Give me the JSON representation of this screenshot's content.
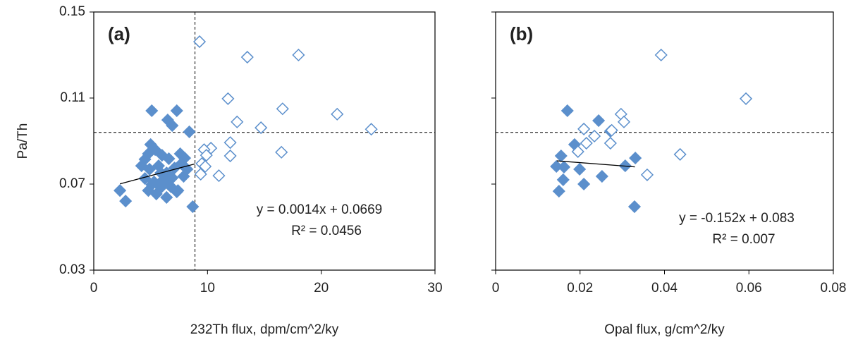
{
  "chart_data": [
    {
      "type": "scatter",
      "panel_label": "(a)",
      "ylabel": "Pa/Th",
      "xlabel": "232Th flux, dpm/cm^2/ky",
      "xlim": [
        0,
        30
      ],
      "xticks": [
        0,
        10,
        20,
        30
      ],
      "ylim": [
        0.03,
        0.15
      ],
      "yticks": [
        0.03,
        0.07,
        0.11,
        0.15
      ],
      "ytick_labels": true,
      "hline": 0.094,
      "vline": 8.9,
      "trendline": {
        "x": [
          2.3,
          8.9
        ],
        "y": [
          0.0701,
          0.0794
        ]
      },
      "equation": "y = 0.0014x + 0.0669",
      "r2_label": "R² = 0.0456",
      "series": [
        {
          "color": "#5b8fcc",
          "filled": true,
          "x": [
            5.1,
            7.3,
            6.5,
            6.9,
            8.4,
            5.0,
            2.3,
            2.8,
            8.7,
            4.8,
            5.4,
            6.0,
            6.6,
            7.6,
            8.0,
            4.2,
            4.9,
            5.7,
            6.4,
            7.1,
            7.7,
            4.5,
            5.3,
            6.1,
            6.9,
            7.9,
            4.8,
            5.5,
            6.4,
            7.3,
            5.1,
            5.9,
            6.8,
            7.4,
            8.2,
            4.5,
            6.6,
            5.9
          ],
          "values": [
            0.1041,
            0.1041,
            0.0998,
            0.0972,
            0.0943,
            0.0884,
            0.067,
            0.0621,
            0.0595,
            0.0841,
            0.086,
            0.0834,
            0.0818,
            0.0841,
            0.0821,
            0.0785,
            0.0769,
            0.0785,
            0.0752,
            0.0775,
            0.0795,
            0.0726,
            0.071,
            0.072,
            0.0729,
            0.0736,
            0.067,
            0.0654,
            0.0638,
            0.0664,
            0.0697,
            0.0684,
            0.0687,
            0.067,
            0.0769,
            0.0815,
            0.0697,
            0.0752
          ]
        },
        {
          "color": "#5b8fcc",
          "filled": false,
          "x": [
            9.3,
            13.5,
            18.0,
            11.8,
            16.6,
            21.4,
            12.6,
            14.7,
            24.4,
            12.0,
            10.3,
            12.0,
            16.5,
            9.7,
            9.9,
            9.5,
            9.8,
            9.4,
            11.0
          ],
          "values": [
            0.1362,
            0.129,
            0.13,
            0.1097,
            0.105,
            0.1025,
            0.0989,
            0.0962,
            0.0955,
            0.0893,
            0.0867,
            0.0831,
            0.0848,
            0.086,
            0.0834,
            0.0795,
            0.0782,
            0.0746,
            0.0739
          ]
        }
      ]
    },
    {
      "type": "scatter",
      "panel_label": "(b)",
      "xlabel": "Opal flux, g/cm^2/ky",
      "xlim": [
        0,
        0.08
      ],
      "xticks": [
        0,
        0.02,
        0.04,
        0.06,
        0.08
      ],
      "ylim": [
        0.03,
        0.15
      ],
      "yticks": [
        0.03,
        0.07,
        0.11,
        0.15
      ],
      "ytick_labels": false,
      "hline": 0.094,
      "trendline": {
        "x": [
          0.0145,
          0.033
        ],
        "y": [
          0.0808,
          0.078
        ]
      },
      "equation": "y = -0.152x + 0.083",
      "r2_label": "R² = 0.007",
      "series": [
        {
          "color": "#5b8fcc",
          "filled": true,
          "x": [
            0.017,
            0.0244,
            0.0272,
            0.0187,
            0.0155,
            0.0331,
            0.0144,
            0.0162,
            0.0199,
            0.0307,
            0.0252,
            0.016,
            0.0209,
            0.015,
            0.0329
          ],
          "values": [
            0.1041,
            0.0995,
            0.0946,
            0.0884,
            0.0831,
            0.0821,
            0.0782,
            0.0779,
            0.0769,
            0.0785,
            0.0736,
            0.072,
            0.07,
            0.0667,
            0.0595
          ]
        },
        {
          "color": "#5b8fcc",
          "filled": false,
          "x": [
            0.0392,
            0.0593,
            0.0297,
            0.0304,
            0.0209,
            0.0234,
            0.0275,
            0.0215,
            0.0272,
            0.0195,
            0.0437,
            0.0359
          ],
          "values": [
            0.13,
            0.1097,
            0.1025,
            0.0989,
            0.0956,
            0.0923,
            0.095,
            0.089,
            0.089,
            0.0851,
            0.0838,
            0.0743
          ]
        }
      ]
    }
  ]
}
